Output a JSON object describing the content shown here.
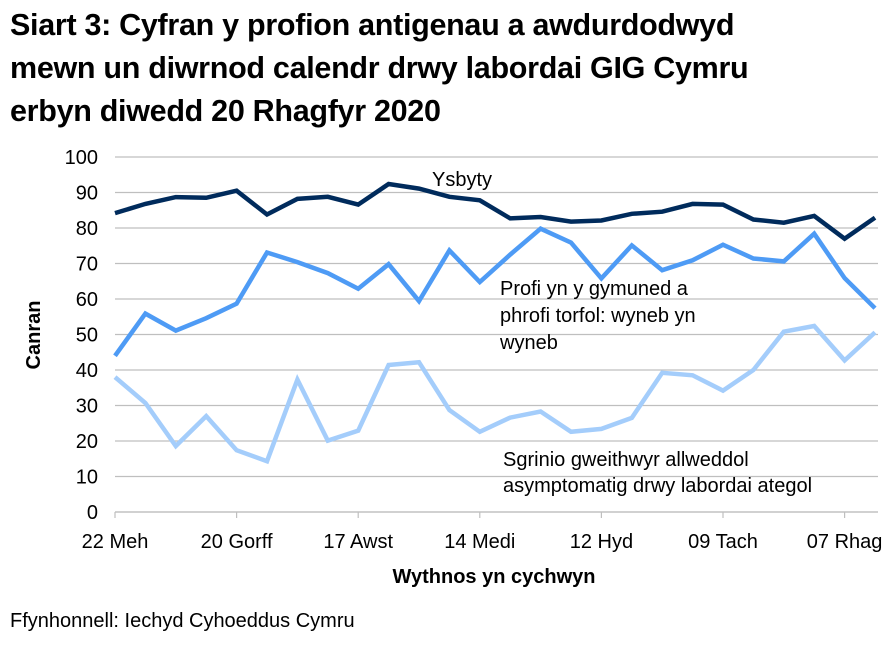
{
  "title_lines": [
    "Siart 3: Cyfran y profion antigenau a awdurdodwyd",
    "mewn un diwrnod calendr drwy labordai GIG Cymru",
    "erbyn diwedd 20 Rhagfyr 2020"
  ],
  "source": "Ffynhonnell: Iechyd Cyhoeddus Cymru",
  "colors": {
    "hospital": "#002b5c",
    "community": "#4e9bf5",
    "keyworkers": "#a4cdfb",
    "gridline": "#bfbfbf"
  },
  "chart_data": {
    "type": "line",
    "title": "Siart 3: Cyfran y profion antigenau a awdurdodwyd mewn un diwrnod calendr drwy labordai GIG Cymru erbyn diwedd 20 Rhagfyr 2020",
    "xlabel": "Wythnos yn cychwyn",
    "ylabel": "Canran",
    "ylim": [
      0,
      100
    ],
    "yticks": [
      0,
      10,
      20,
      30,
      40,
      50,
      60,
      70,
      80,
      90,
      100
    ],
    "grid": true,
    "legend_position": "inline labels",
    "x_tick_labels": [
      "22 Meh",
      "20 Gorff",
      "17 Awst",
      "14 Medi",
      "12 Hyd",
      "09 Tach",
      "07 Rhag"
    ],
    "x_tick_every": 4,
    "num_points": 26,
    "series": [
      {
        "name": "Ysbyty",
        "label_lines": [
          "Ysbyty"
        ],
        "values": [
          84.2,
          86.8,
          88.7,
          88.5,
          90.5,
          83.8,
          88.2,
          88.8,
          86.6,
          92.4,
          91.1,
          88.8,
          87.8,
          82.7,
          83.1,
          81.8,
          82.1,
          84.0,
          84.6,
          86.8,
          86.6,
          82.4,
          81.5,
          83.4,
          77.0,
          82.9
        ]
      },
      {
        "name": "Profi yn y gymuned a phrofi torfol: wyneb yn wyneb",
        "label_lines": [
          "Profi yn y gymuned a",
          "phrofi torfol: wyneb yn",
          "wyneb"
        ],
        "values": [
          44.0,
          55.9,
          51.1,
          54.6,
          58.7,
          73.1,
          70.4,
          67.3,
          62.9,
          69.8,
          59.4,
          73.7,
          64.8,
          72.5,
          79.8,
          75.9,
          65.8,
          75.1,
          68.1,
          70.9,
          75.3,
          71.4,
          70.6,
          78.4,
          65.9,
          57.4
        ]
      },
      {
        "name": "Sgrinio gweithwyr allweddol asymptomatig drwy labordai ategol",
        "label_lines": [
          "Sgrinio gweithwyr allweddol",
          "asymptomatig drwy labordai ategol"
        ],
        "values": [
          38.0,
          30.7,
          18.6,
          27.0,
          17.4,
          14.3,
          37.3,
          20.1,
          22.9,
          41.4,
          42.2,
          28.7,
          22.6,
          26.6,
          28.3,
          22.6,
          23.4,
          26.5,
          39.2,
          38.5,
          34.2,
          40.0,
          50.8,
          52.4,
          42.7,
          50.6
        ]
      }
    ]
  }
}
